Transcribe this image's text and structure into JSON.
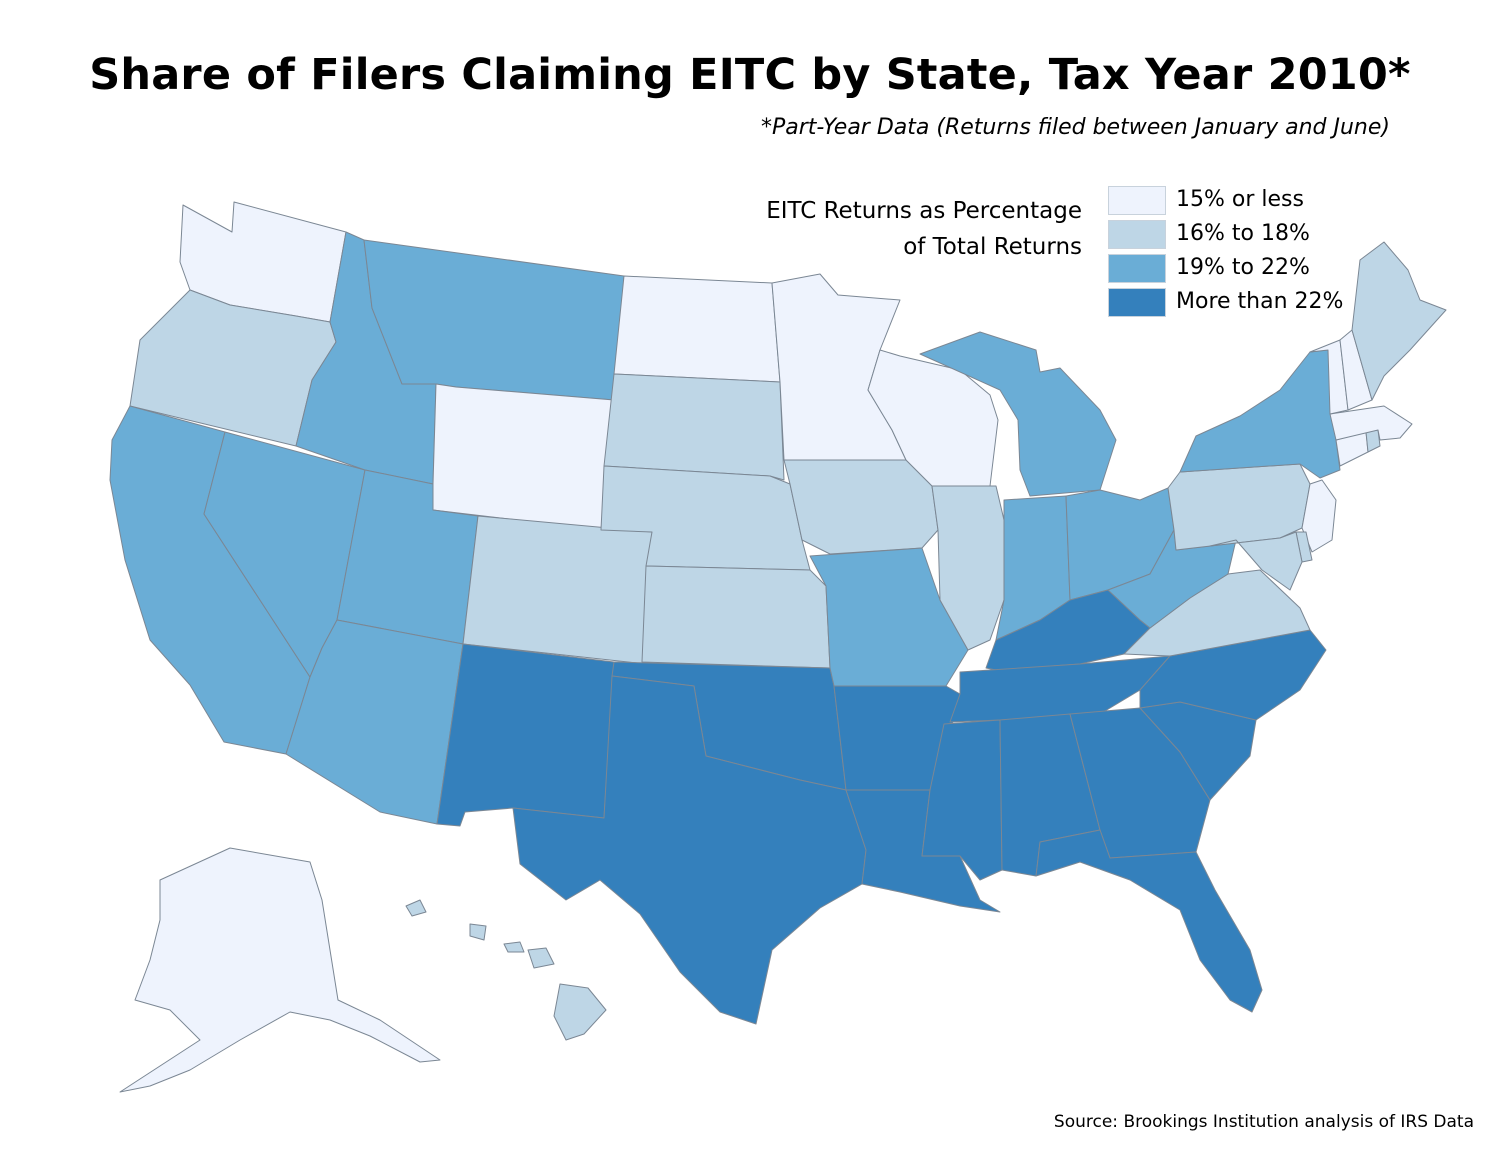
{
  "title": "Share of Filers Claiming EITC by State, Tax Year 2010*",
  "subtitle": "*Part-Year Data (Returns filed between January and June)",
  "legend": {
    "title_line1": "EITC Returns as Percentage",
    "title_line2": "of Total Returns",
    "items": [
      {
        "label": "15% or less",
        "color": "#eef3fd"
      },
      {
        "label": "16% to 18%",
        "color": "#bed6e6"
      },
      {
        "label": "19% to 22%",
        "color": "#6aadd6"
      },
      {
        "label": "More than 22%",
        "color": "#3480bc"
      }
    ]
  },
  "source": "Source: Brookings Institution analysis of IRS Data",
  "chart_data": {
    "type": "choropleth",
    "regions": [
      {
        "name": "Washington",
        "category": "15% or less"
      },
      {
        "name": "Oregon",
        "category": "16% to 18%"
      },
      {
        "name": "California",
        "category": "19% to 22%"
      },
      {
        "name": "Nevada",
        "category": "19% to 22%"
      },
      {
        "name": "Idaho",
        "category": "19% to 22%"
      },
      {
        "name": "Montana",
        "category": "19% to 22%"
      },
      {
        "name": "Wyoming",
        "category": "15% or less"
      },
      {
        "name": "Utah",
        "category": "19% to 22%"
      },
      {
        "name": "Arizona",
        "category": "19% to 22%"
      },
      {
        "name": "Colorado",
        "category": "16% to 18%"
      },
      {
        "name": "New Mexico",
        "category": "More than 22%"
      },
      {
        "name": "North Dakota",
        "category": "15% or less"
      },
      {
        "name": "South Dakota",
        "category": "16% to 18%"
      },
      {
        "name": "Nebraska",
        "category": "16% to 18%"
      },
      {
        "name": "Kansas",
        "category": "16% to 18%"
      },
      {
        "name": "Oklahoma",
        "category": "More than 22%"
      },
      {
        "name": "Texas",
        "category": "More than 22%"
      },
      {
        "name": "Minnesota",
        "category": "15% or less"
      },
      {
        "name": "Iowa",
        "category": "16% to 18%"
      },
      {
        "name": "Missouri",
        "category": "19% to 22%"
      },
      {
        "name": "Arkansas",
        "category": "More than 22%"
      },
      {
        "name": "Louisiana",
        "category": "More than 22%"
      },
      {
        "name": "Wisconsin",
        "category": "15% or less"
      },
      {
        "name": "Illinois",
        "category": "16% to 18%"
      },
      {
        "name": "Michigan",
        "category": "19% to 22%"
      },
      {
        "name": "Indiana",
        "category": "19% to 22%"
      },
      {
        "name": "Ohio",
        "category": "19% to 22%"
      },
      {
        "name": "Kentucky",
        "category": "More than 22%"
      },
      {
        "name": "Tennessee",
        "category": "More than 22%"
      },
      {
        "name": "Mississippi",
        "category": "More than 22%"
      },
      {
        "name": "Alabama",
        "category": "More than 22%"
      },
      {
        "name": "Georgia",
        "category": "More than 22%"
      },
      {
        "name": "Florida",
        "category": "More than 22%"
      },
      {
        "name": "South Carolina",
        "category": "More than 22%"
      },
      {
        "name": "North Carolina",
        "category": "More than 22%"
      },
      {
        "name": "Virginia",
        "category": "16% to 18%"
      },
      {
        "name": "West Virginia",
        "category": "19% to 22%"
      },
      {
        "name": "Pennsylvania",
        "category": "16% to 18%"
      },
      {
        "name": "New York",
        "category": "19% to 22%"
      },
      {
        "name": "New Jersey",
        "category": "15% or less"
      },
      {
        "name": "Delaware",
        "category": "16% to 18%"
      },
      {
        "name": "Maryland",
        "category": "16% to 18%"
      },
      {
        "name": "Connecticut",
        "category": "15% or less"
      },
      {
        "name": "Rhode Island",
        "category": "16% to 18%"
      },
      {
        "name": "Massachusetts",
        "category": "15% or less"
      },
      {
        "name": "Vermont",
        "category": "15% or less"
      },
      {
        "name": "New Hampshire",
        "category": "15% or less"
      },
      {
        "name": "Maine",
        "category": "16% to 18%"
      },
      {
        "name": "Alaska",
        "category": "15% or less"
      },
      {
        "name": "Hawaii",
        "category": "16% to 18%"
      }
    ]
  }
}
